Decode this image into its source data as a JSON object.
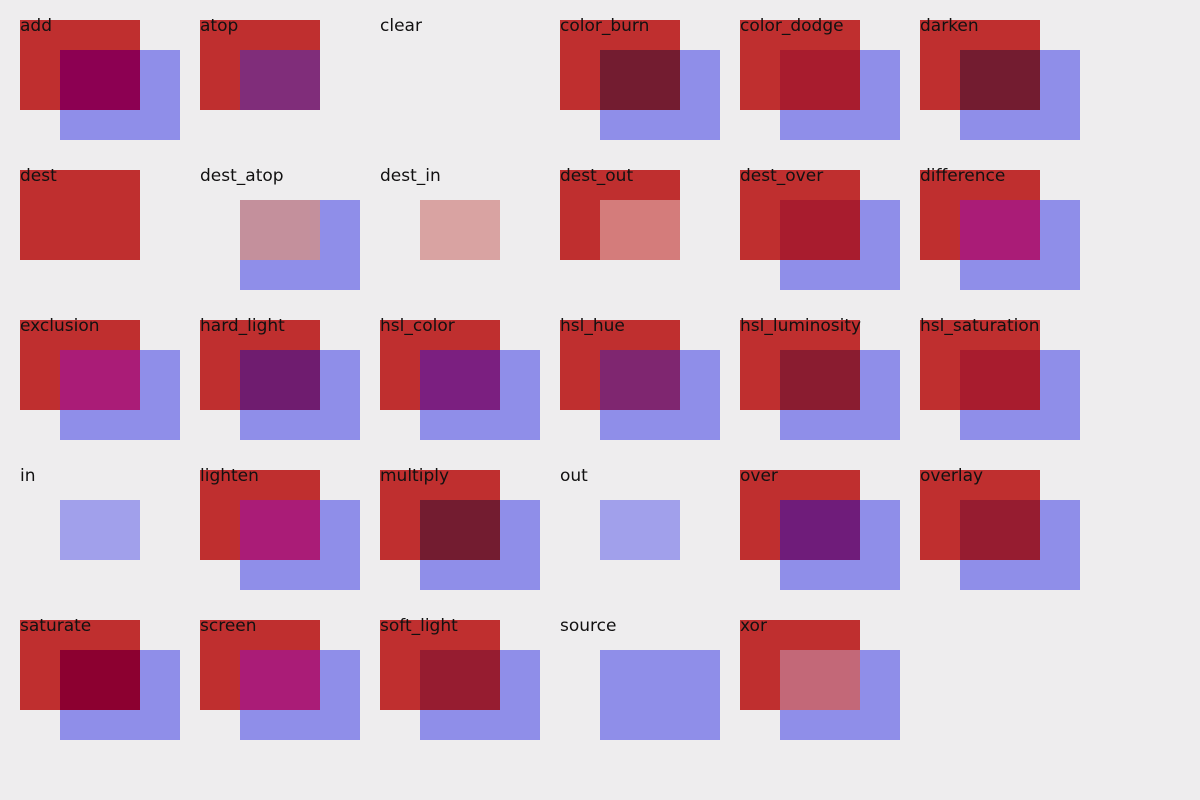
{
  "colors": {
    "background": "#eeedee",
    "red": "#bf2f2f",
    "blue": "#8f8ee9"
  },
  "modes": [
    {
      "name": "add",
      "src": "#bf2f2f",
      "dst": "#8f8ee9",
      "overlap": "#8c0052"
    },
    {
      "name": "atop",
      "src": "#bf2f2f",
      "dst": null,
      "overlap": "#802d7a"
    },
    {
      "name": "clear",
      "src": null,
      "dst": null,
      "overlap": null
    },
    {
      "name": "color_burn",
      "src": "#bf2f2f",
      "dst": "#8f8ee9",
      "overlap": "#731c30"
    },
    {
      "name": "color_dodge",
      "src": "#bf2f2f",
      "dst": "#8f8ee9",
      "overlap": "#a81c2e"
    },
    {
      "name": "darken",
      "src": "#bf2f2f",
      "dst": "#8f8ee9",
      "overlap": "#731c30"
    },
    {
      "name": "dest",
      "src": "#bf2f2f",
      "dst": null,
      "overlap": null
    },
    {
      "name": "dest_atop",
      "src": null,
      "dst": "#8f8ee9",
      "overlap": "#c4909c"
    },
    {
      "name": "dest_in",
      "src": null,
      "dst": null,
      "overlap": "#d9a3a2"
    },
    {
      "name": "dest_out",
      "src": "#bf2f2f",
      "dst": null,
      "overlap": "#d47c7b"
    },
    {
      "name": "dest_over",
      "src": "#bf2f2f",
      "dst": "#8f8ee9",
      "overlap": "#a81c2e"
    },
    {
      "name": "difference",
      "src": "#bf2f2f",
      "dst": "#8f8ee9",
      "overlap": "#aa1c77"
    },
    {
      "name": "exclusion",
      "src": "#bf2f2f",
      "dst": "#8f8ee9",
      "overlap": "#aa1c77"
    },
    {
      "name": "hard_light",
      "src": "#bf2f2f",
      "dst": "#8f8ee9",
      "overlap": "#6f1c6f"
    },
    {
      "name": "hsl_color",
      "src": "#bf2f2f",
      "dst": "#8f8ee9",
      "overlap": "#7b1f80"
    },
    {
      "name": "hsl_hue",
      "src": "#bf2f2f",
      "dst": "#8f8ee9",
      "overlap": "#7f2670"
    },
    {
      "name": "hsl_luminosity",
      "src": "#bf2f2f",
      "dst": "#8f8ee9",
      "overlap": "#8a1c30"
    },
    {
      "name": "hsl_saturation",
      "src": "#bf2f2f",
      "dst": "#8f8ee9",
      "overlap": "#a81c2e"
    },
    {
      "name": "in",
      "src": null,
      "dst": null,
      "overlap": "#a1a0eb"
    },
    {
      "name": "lighten",
      "src": "#bf2f2f",
      "dst": "#8f8ee9",
      "overlap": "#aa1c77"
    },
    {
      "name": "multiply",
      "src": "#bf2f2f",
      "dst": "#8f8ee9",
      "overlap": "#731c30"
    },
    {
      "name": "out",
      "src": null,
      "dst": null,
      "overlap": "#a1a0eb"
    },
    {
      "name": "over",
      "src": "#bf2f2f",
      "dst": "#8f8ee9",
      "overlap": "#6f1c7a"
    },
    {
      "name": "overlay",
      "src": "#bf2f2f",
      "dst": "#8f8ee9",
      "overlap": "#961c30"
    },
    {
      "name": "saturate",
      "src": "#bf2f2f",
      "dst": "#8f8ee9",
      "overlap": "#8c0030"
    },
    {
      "name": "screen",
      "src": "#bf2f2f",
      "dst": "#8f8ee9",
      "overlap": "#aa1c77"
    },
    {
      "name": "soft_light",
      "src": "#bf2f2f",
      "dst": "#8f8ee9",
      "overlap": "#961c30"
    },
    {
      "name": "source",
      "src": null,
      "dst": "#8f8ee9",
      "overlap": null
    },
    {
      "name": "xor",
      "src": "#bf2f2f",
      "dst": "#8f8ee9",
      "overlap": "#c36878"
    }
  ]
}
